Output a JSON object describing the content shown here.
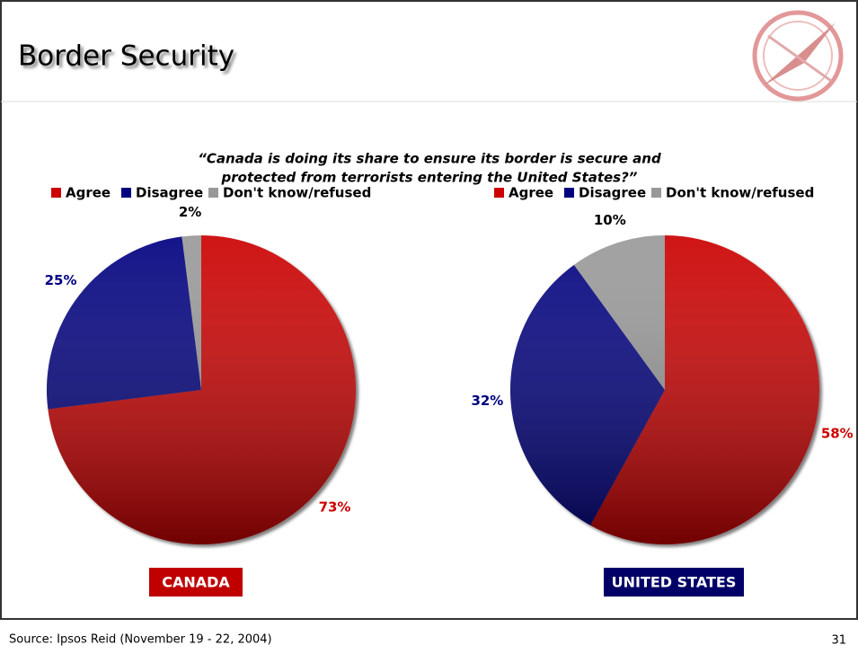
{
  "title": "Border Security",
  "subtitle": [
    "“Canada is doing its share to ensure its border is secure and",
    "protected from terrorists entering the United States?”"
  ],
  "source": "Source: Ipsos Reid (November 19 - 22, 2004)",
  "page_number": 31,
  "chart_data": [
    {
      "type": "pie",
      "title": "CANADA",
      "categories": [
        "Agree",
        "Disagree",
        "Don't know/refused"
      ],
      "values": [
        73,
        25,
        2
      ],
      "value_labels": [
        "73%",
        "25%",
        "2%"
      ],
      "colors": [
        "#cc0000",
        "#000080",
        "#999999"
      ],
      "label_colors": [
        "#cc0000",
        "#000080",
        "#000000"
      ]
    },
    {
      "type": "pie",
      "title": "UNITED STATES",
      "categories": [
        "Agree",
        "Disagree",
        "Don't know/refused"
      ],
      "values": [
        58,
        32,
        10
      ],
      "value_labels": [
        "58%",
        "32%",
        "10%"
      ],
      "colors": [
        "#cc0000",
        "#000080",
        "#999999"
      ],
      "label_colors": [
        "#cc0000",
        "#000080",
        "#000000"
      ]
    }
  ]
}
